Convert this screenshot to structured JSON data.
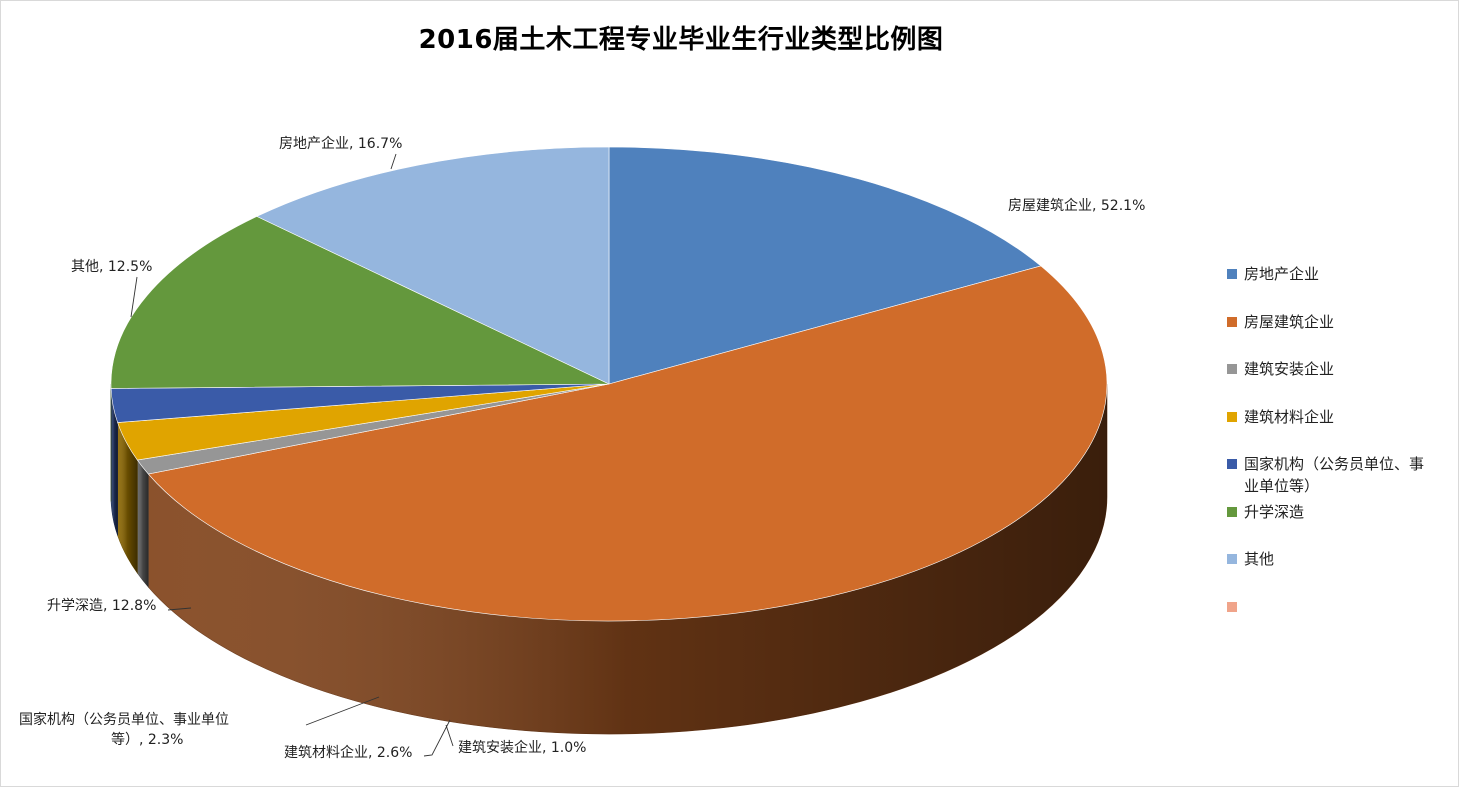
{
  "chart_data": {
    "type": "pie",
    "title": "2016届土木工程专业毕业生行业类型比例图",
    "slices": [
      {
        "name": "房地产企业",
        "value": 16.7,
        "label": "房地产企业, 16.7%",
        "color": "#4f81bd"
      },
      {
        "name": "房屋建筑企业",
        "value": 52.1,
        "label": "房屋建筑企业, 52.1%",
        "color": "#d06c2a"
      },
      {
        "name": "建筑安装企业",
        "value": 1.0,
        "label": "建筑安装企业, 1.0%",
        "color": "#969696"
      },
      {
        "name": "建筑材料企业",
        "value": 2.6,
        "label": "建筑材料企业, 2.6%",
        "color": "#e0a400"
      },
      {
        "name": "国家机构（公务员单位、事业单位等）",
        "value": 2.3,
        "label_lines": [
          "国家机构（公务员单位、事业单位",
          "等）, 2.3%"
        ],
        "color": "#3a5ba8"
      },
      {
        "name": "升学深造",
        "value": 12.8,
        "label": "升学深造, 12.8%",
        "color": "#64983d"
      },
      {
        "name": "其他",
        "value": 12.5,
        "label": "其他, 12.5%",
        "color": "#95b6de"
      }
    ],
    "legend": {
      "position": "right",
      "entries": [
        {
          "lines": [
            "房地产企业"
          ],
          "color": "#4f81bd"
        },
        {
          "lines": [
            "房屋建筑企业"
          ],
          "color": "#d06c2a"
        },
        {
          "lines": [
            "建筑安装企业"
          ],
          "color": "#969696"
        },
        {
          "lines": [
            "建筑材料企业"
          ],
          "color": "#e0a400"
        },
        {
          "lines": [
            "国家机构（公务员单位、事",
            "业单位等）"
          ],
          "color": "#3a5ba8"
        },
        {
          "lines": [
            "升学深造"
          ],
          "color": "#64983d"
        },
        {
          "lines": [
            "其他"
          ],
          "color": "#95b6de"
        },
        {
          "lines": [
            ""
          ],
          "color": "#f0a48a"
        }
      ]
    }
  }
}
